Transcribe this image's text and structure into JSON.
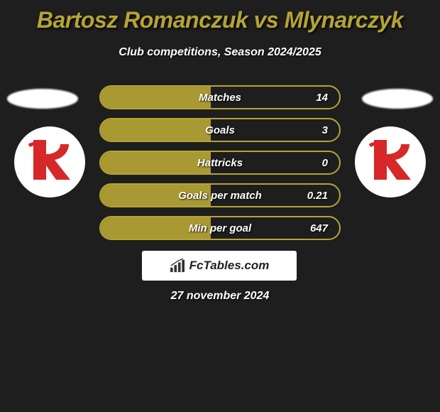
{
  "title_color": "#b5a435",
  "title": "Bartosz Romanczuk vs Mlynarczyk",
  "subtitle": "Club competitions, Season 2024/2025",
  "club_logo": {
    "bg": "#ffffff",
    "text_color": "#d62828",
    "text": "ŁKS"
  },
  "stat_style": {
    "border_color": "#b5a435",
    "fill_color": "#b5a435",
    "fill_alpha": 0.92
  },
  "stats": [
    {
      "label": "Matches",
      "value": "14",
      "fill_pct": 46
    },
    {
      "label": "Goals",
      "value": "3",
      "fill_pct": 46
    },
    {
      "label": "Hattricks",
      "value": "0",
      "fill_pct": 46
    },
    {
      "label": "Goals per match",
      "value": "0.21",
      "fill_pct": 46
    },
    {
      "label": "Min per goal",
      "value": "647",
      "fill_pct": 46
    }
  ],
  "branding": {
    "text": "FcTables.com",
    "icon_color": "#333333"
  },
  "date": "27 november 2024",
  "background_color": "#1e1e1e"
}
